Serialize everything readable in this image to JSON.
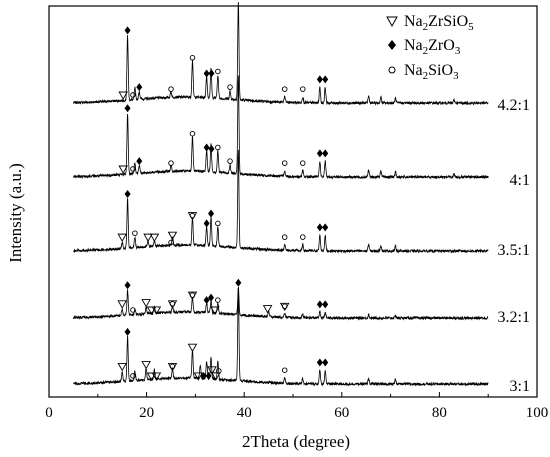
{
  "chart_data": {
    "type": "line",
    "xlabel": "2Theta (degree)",
    "ylabel": "Intensity (a.u.)",
    "xlim": [
      0,
      100
    ],
    "xticks": [
      "0",
      "20",
      "40",
      "60",
      "80",
      "100"
    ],
    "y_ticks_shown": false,
    "data_xrange": [
      5,
      90
    ],
    "legend": {
      "placement": "top-right",
      "entries": [
        {
          "symbol": "triangle-down-open",
          "formula": [
            "Na",
            "2",
            "ZrSiO",
            "5"
          ]
        },
        {
          "symbol": "diamond-filled",
          "formula": [
            "Na",
            "2",
            "ZrO",
            "3"
          ]
        },
        {
          "symbol": "circle-open",
          "formula": [
            "Na",
            "2",
            "SiO",
            "3"
          ]
        }
      ]
    },
    "series": [
      {
        "name": "4.2:1",
        "peaks": [
          [
            16.1,
            0.66
          ],
          [
            17.6,
            0.12
          ],
          [
            18.5,
            0.08
          ],
          [
            25.0,
            0.06
          ],
          [
            29.4,
            0.38
          ],
          [
            32.3,
            0.22
          ],
          [
            33.2,
            0.3
          ],
          [
            34.6,
            0.24
          ],
          [
            37.1,
            0.08
          ],
          [
            38.8,
            1.0
          ],
          [
            48.3,
            0.06
          ],
          [
            52.0,
            0.06
          ],
          [
            55.5,
            0.16
          ],
          [
            56.6,
            0.16
          ],
          [
            65.5,
            0.07
          ],
          [
            68.0,
            0.06
          ],
          [
            71.0,
            0.05
          ],
          [
            83.0,
            0.03
          ]
        ]
      },
      {
        "name": "4:1",
        "peaks": [
          [
            16.1,
            0.62
          ],
          [
            17.6,
            0.12
          ],
          [
            18.5,
            0.08
          ],
          [
            25.0,
            0.06
          ],
          [
            29.4,
            0.36
          ],
          [
            32.3,
            0.22
          ],
          [
            33.2,
            0.28
          ],
          [
            34.6,
            0.22
          ],
          [
            37.1,
            0.08
          ],
          [
            38.8,
            1.0
          ],
          [
            48.3,
            0.06
          ],
          [
            52.0,
            0.06
          ],
          [
            55.5,
            0.16
          ],
          [
            56.6,
            0.16
          ],
          [
            65.5,
            0.07
          ],
          [
            68.0,
            0.06
          ],
          [
            71.0,
            0.05
          ],
          [
            83.0,
            0.03
          ]
        ]
      },
      {
        "name": "3.5:1",
        "peaks": [
          [
            15.0,
            0.06
          ],
          [
            16.1,
            0.5
          ],
          [
            17.6,
            0.1
          ],
          [
            20.3,
            0.06
          ],
          [
            21.6,
            0.06
          ],
          [
            25.3,
            0.08
          ],
          [
            29.4,
            0.28
          ],
          [
            32.3,
            0.2
          ],
          [
            33.2,
            0.3
          ],
          [
            34.6,
            0.2
          ],
          [
            38.8,
            1.0
          ],
          [
            48.3,
            0.06
          ],
          [
            52.0,
            0.06
          ],
          [
            55.5,
            0.16
          ],
          [
            56.6,
            0.16
          ],
          [
            65.5,
            0.07
          ],
          [
            68.0,
            0.06
          ],
          [
            71.0,
            0.05
          ]
        ]
      },
      {
        "name": "3.2:1",
        "peaks": [
          [
            15.0,
            0.1
          ],
          [
            16.1,
            0.4
          ],
          [
            17.6,
            0.08
          ],
          [
            19.9,
            0.12
          ],
          [
            21.6,
            0.1
          ],
          [
            25.3,
            0.1
          ],
          [
            29.4,
            0.24
          ],
          [
            32.3,
            0.16
          ],
          [
            33.2,
            0.2
          ],
          [
            34.6,
            0.16
          ],
          [
            38.8,
            0.44
          ],
          [
            45.0,
            0.08
          ],
          [
            48.3,
            0.06
          ],
          [
            52.0,
            0.05
          ],
          [
            55.5,
            0.09
          ],
          [
            56.6,
            0.09
          ],
          [
            65.5,
            0.05
          ],
          [
            71.0,
            0.04
          ]
        ]
      },
      {
        "name": "3:1",
        "peaks": [
          [
            15.0,
            0.1
          ],
          [
            16.1,
            0.46
          ],
          [
            17.6,
            0.1
          ],
          [
            19.9,
            0.12
          ],
          [
            21.6,
            0.1
          ],
          [
            25.3,
            0.1
          ],
          [
            29.4,
            0.3
          ],
          [
            31.0,
            0.14
          ],
          [
            32.3,
            0.18
          ],
          [
            33.2,
            0.22
          ],
          [
            34.6,
            0.18
          ],
          [
            38.8,
            0.96
          ],
          [
            48.3,
            0.06
          ],
          [
            52.0,
            0.05
          ],
          [
            55.5,
            0.14
          ],
          [
            56.6,
            0.14
          ],
          [
            65.5,
            0.06
          ],
          [
            71.0,
            0.05
          ]
        ]
      }
    ],
    "markers": [
      [
        {
          "s": "D",
          "x": 16.1
        },
        {
          "s": "V",
          "x": 15.2
        },
        {
          "s": "O",
          "x": 17.2
        },
        {
          "s": "D",
          "x": 18.5
        },
        {
          "s": "O",
          "x": 25.0
        },
        {
          "s": "O",
          "x": 29.4
        },
        {
          "s": "D",
          "x": 32.3
        },
        {
          "s": "D",
          "x": 33.3
        },
        {
          "s": "O",
          "x": 34.6
        },
        {
          "s": "O",
          "x": 37.1
        },
        {
          "s": "O",
          "x": 48.3
        },
        {
          "s": "O",
          "x": 52.0
        },
        {
          "s": "D",
          "x": 55.5
        },
        {
          "s": "D",
          "x": 56.6
        }
      ],
      [
        {
          "s": "D",
          "x": 16.1
        },
        {
          "s": "V",
          "x": 15.2
        },
        {
          "s": "O",
          "x": 17.2
        },
        {
          "s": "D",
          "x": 18.5
        },
        {
          "s": "O",
          "x": 25.0
        },
        {
          "s": "O",
          "x": 29.4
        },
        {
          "s": "D",
          "x": 32.3
        },
        {
          "s": "D",
          "x": 33.3
        },
        {
          "s": "O",
          "x": 34.6
        },
        {
          "s": "O",
          "x": 37.1
        },
        {
          "s": "O",
          "x": 48.3
        },
        {
          "s": "O",
          "x": 52.0
        },
        {
          "s": "D",
          "x": 55.5
        },
        {
          "s": "D",
          "x": 56.6
        }
      ],
      [
        {
          "s": "D",
          "x": 16.1
        },
        {
          "s": "V",
          "x": 15.0
        },
        {
          "s": "O",
          "x": 17.6
        },
        {
          "s": "V",
          "x": 20.3
        },
        {
          "s": "V",
          "x": 21.6
        },
        {
          "s": "V",
          "x": 25.3
        },
        {
          "s": "O",
          "x": 25.0
        },
        {
          "s": "O",
          "x": 29.4
        },
        {
          "s": "V",
          "x": 29.4
        },
        {
          "s": "D",
          "x": 32.3
        },
        {
          "s": "D",
          "x": 33.2
        },
        {
          "s": "O",
          "x": 34.6
        },
        {
          "s": "O",
          "x": 48.3
        },
        {
          "s": "O",
          "x": 52.0
        },
        {
          "s": "D",
          "x": 55.5
        },
        {
          "s": "D",
          "x": 56.6
        }
      ],
      [
        {
          "s": "D",
          "x": 16.1
        },
        {
          "s": "V",
          "x": 15.0
        },
        {
          "s": "O",
          "x": 17.2
        },
        {
          "s": "V",
          "x": 19.9
        },
        {
          "s": "V",
          "x": 21.0
        },
        {
          "s": "V",
          "x": 22.0
        },
        {
          "s": "O",
          "x": 25.3
        },
        {
          "s": "V",
          "x": 25.3
        },
        {
          "s": "O",
          "x": 29.4
        },
        {
          "s": "V",
          "x": 29.4
        },
        {
          "s": "D",
          "x": 32.3
        },
        {
          "s": "D",
          "x": 33.2
        },
        {
          "s": "V",
          "x": 34.0
        },
        {
          "s": "O",
          "x": 34.6
        },
        {
          "s": "D",
          "x": 38.8
        },
        {
          "s": "V",
          "x": 44.8
        },
        {
          "s": "V",
          "x": 48.3
        },
        {
          "s": "O",
          "x": 48.3
        },
        {
          "s": "D",
          "x": 55.5
        },
        {
          "s": "D",
          "x": 56.6
        }
      ],
      [
        {
          "s": "D",
          "x": 16.1
        },
        {
          "s": "V",
          "x": 15.0
        },
        {
          "s": "O",
          "x": 17.2
        },
        {
          "s": "V",
          "x": 19.9
        },
        {
          "s": "V",
          "x": 21.0
        },
        {
          "s": "V",
          "x": 22.0
        },
        {
          "s": "O",
          "x": 25.3
        },
        {
          "s": "V",
          "x": 25.3
        },
        {
          "s": "V",
          "x": 29.4
        },
        {
          "s": "V",
          "x": 30.6
        },
        {
          "s": "D",
          "x": 31.7
        },
        {
          "s": "D",
          "x": 32.7
        },
        {
          "s": "V",
          "x": 33.4
        },
        {
          "s": "V",
          "x": 34.2
        },
        {
          "s": "O",
          "x": 34.8
        },
        {
          "s": "O",
          "x": 48.3
        },
        {
          "s": "D",
          "x": 55.5
        },
        {
          "s": "D",
          "x": 56.6
        }
      ]
    ]
  }
}
